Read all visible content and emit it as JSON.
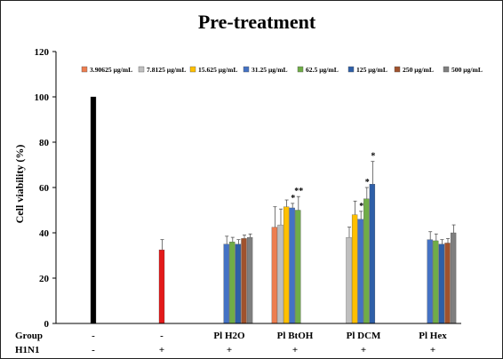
{
  "chart_data": {
    "type": "bar",
    "title": "Pre-treatment",
    "ylabel": "Cell viability (%)",
    "ylim": [
      0,
      120
    ],
    "yticks": [
      0,
      20,
      40,
      60,
      80,
      100,
      120
    ],
    "legend_position": "top",
    "legend": [
      {
        "label": "3.90625 μg/mL",
        "color": "#ED7D4F"
      },
      {
        "label": "7.8125 μg/mL",
        "color": "#BFBFBF"
      },
      {
        "label": "15.625 μg/mL",
        "color": "#FFC000"
      },
      {
        "label": "31.25 μg/mL",
        "color": "#4472C4"
      },
      {
        "label": "62.5 μg/mL",
        "color": "#70AD47"
      },
      {
        "label": "125 μg/mL",
        "color": "#2E5FA8"
      },
      {
        "label": "250 μg/mL",
        "color": "#A0522D"
      },
      {
        "label": "500 μg/mL",
        "color": "#7F7F7F"
      }
    ],
    "row_labels": {
      "group": "Group",
      "h1n1": "H1N1"
    },
    "groups": [
      {
        "group_label": "-",
        "h1n1_label": "-",
        "bars": [
          {
            "value": 100,
            "error": 0,
            "color": "#000000",
            "slot": 3.5,
            "sig": ""
          }
        ]
      },
      {
        "group_label": "-",
        "h1n1_label": "+",
        "bars": [
          {
            "value": 32.5,
            "error": 4.5,
            "color": "#E31A1A",
            "slot": 3.5,
            "sig": ""
          }
        ]
      },
      {
        "group_label": "Pl H2O",
        "h1n1_label": "+",
        "bars": [
          {
            "value": 35,
            "error": 3.5,
            "color": "#4472C4",
            "slot": 3,
            "sig": ""
          },
          {
            "value": 36,
            "error": 2,
            "color": "#70AD47",
            "slot": 4,
            "sig": ""
          },
          {
            "value": 35,
            "error": 2,
            "color": "#2E5FA8",
            "slot": 5,
            "sig": ""
          },
          {
            "value": 37.5,
            "error": 1.5,
            "color": "#A0522D",
            "slot": 6,
            "sig": ""
          },
          {
            "value": 38,
            "error": 1.5,
            "color": "#7F7F7F",
            "slot": 7,
            "sig": ""
          }
        ]
      },
      {
        "group_label": "Pl BtOH",
        "h1n1_label": "+",
        "bars": [
          {
            "value": 42.5,
            "error": 9,
            "color": "#ED7D4F",
            "slot": 0,
            "sig": ""
          },
          {
            "value": 43.5,
            "error": 7,
            "color": "#BFBFBF",
            "slot": 1,
            "sig": ""
          },
          {
            "value": 51.5,
            "error": 3,
            "color": "#FFC000",
            "slot": 2,
            "sig": ""
          },
          {
            "value": 51,
            "error": 2,
            "color": "#4472C4",
            "slot": 3,
            "sig": "*"
          },
          {
            "value": 50,
            "error": 6,
            "color": "#70AD47",
            "slot": 4,
            "sig": "**"
          }
        ]
      },
      {
        "group_label": "Pl DCM",
        "h1n1_label": "+",
        "bars": [
          {
            "value": 38,
            "error": 4.5,
            "color": "#BFBFBF",
            "slot": 1,
            "sig": ""
          },
          {
            "value": 48,
            "error": 6,
            "color": "#FFC000",
            "slot": 2,
            "sig": ""
          },
          {
            "value": 46,
            "error": 3.5,
            "color": "#4472C4",
            "slot": 3,
            "sig": "*"
          },
          {
            "value": 55,
            "error": 5,
            "color": "#70AD47",
            "slot": 4,
            "sig": "*"
          },
          {
            "value": 61.5,
            "error": 10,
            "color": "#2E5FA8",
            "slot": 5,
            "sig": "*"
          }
        ]
      },
      {
        "group_label": "Pl Hex",
        "h1n1_label": "+",
        "bars": [
          {
            "value": 37,
            "error": 3.5,
            "color": "#4472C4",
            "slot": 3,
            "sig": ""
          },
          {
            "value": 36.5,
            "error": 3,
            "color": "#70AD47",
            "slot": 4,
            "sig": ""
          },
          {
            "value": 35,
            "error": 2,
            "color": "#2E5FA8",
            "slot": 5,
            "sig": ""
          },
          {
            "value": 35.5,
            "error": 2,
            "color": "#A0522D",
            "slot": 6,
            "sig": ""
          },
          {
            "value": 40,
            "error": 3.5,
            "color": "#7F7F7F",
            "slot": 7,
            "sig": ""
          }
        ]
      }
    ]
  }
}
